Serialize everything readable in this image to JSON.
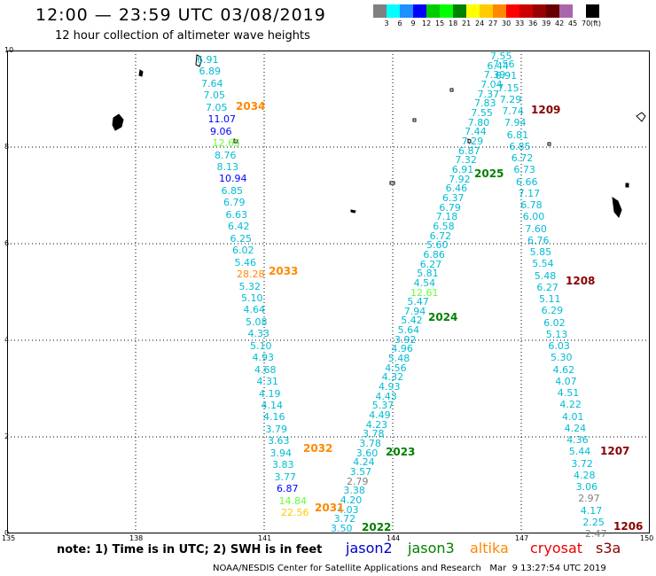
{
  "header": {
    "title": "12:00 — 23:59 UTC 03/08/2019",
    "subtitle": "12 hour collection of altimeter wave heights"
  },
  "colorbar": {
    "colors": [
      "#808080",
      "#00ffff",
      "#1e90ff",
      "#0000ff",
      "#00cc00",
      "#00ff00",
      "#008000",
      "#ffff00",
      "#ffcc00",
      "#ff8800",
      "#ff0000",
      "#cc0000",
      "#990000",
      "#660000",
      "#aa66aa",
      "#ffffff",
      "#000000"
    ],
    "labels": [
      "3",
      "6",
      "9",
      "12",
      "15",
      "18",
      "21",
      "24",
      "27",
      "30",
      "33",
      "36",
      "39",
      "42",
      "45",
      "70",
      "(ft)"
    ]
  },
  "map": {
    "lat_ticks": [
      "10",
      "8",
      "6",
      "4",
      "2",
      "0"
    ],
    "lon_ticks": [
      "135",
      "138",
      "141",
      "144",
      "147",
      "150"
    ],
    "lon_range": [
      135,
      150
    ],
    "lat_range": [
      0,
      10
    ],
    "grid_lons": [
      138,
      141,
      144,
      147
    ],
    "grid_lats": [
      8,
      6,
      4,
      2
    ]
  },
  "tracks": [
    {
      "name": "track-2034-2031",
      "color": "#00bcd4",
      "values": [
        "6.91",
        "6.89",
        "7.64",
        "7.05",
        "7.05",
        "11.07",
        "9.06",
        "12.65",
        "8.76",
        "8.13",
        "10.94",
        "6.85",
        "6.79",
        "6.63",
        "6.42",
        "6.25",
        "6.02",
        "5.46",
        "28.28",
        "5.32",
        "5.10",
        "4.64",
        "5.08",
        "4.33",
        "5.10",
        "4.93",
        "4.68",
        "4.31",
        "4.19",
        "4.14",
        "4.16",
        "3.79",
        "3.63",
        "3.94",
        "3.83",
        "3.77",
        "6.87",
        "14.84",
        "22.56"
      ],
      "colors": [
        "#00bcd4",
        "#00bcd4",
        "#00bcd4",
        "#00bcd4",
        "#00bcd4",
        "#0000ff",
        "#0000ff",
        "#66ff33",
        "#00bcd4",
        "#00bcd4",
        "#0000ff",
        "#00bcd4",
        "#00bcd4",
        "#00bcd4",
        "#00bcd4",
        "#00bcd4",
        "#00bcd4",
        "#00bcd4",
        "#ff8800",
        "#00bcd4",
        "#00bcd4",
        "#00bcd4",
        "#00bcd4",
        "#00bcd4",
        "#00bcd4",
        "#00bcd4",
        "#00bcd4",
        "#00bcd4",
        "#00bcd4",
        "#00bcd4",
        "#00bcd4",
        "#00bcd4",
        "#00bcd4",
        "#00bcd4",
        "#00bcd4",
        "#00bcd4",
        "#0000ff",
        "#66ff33",
        "#ffcc00"
      ]
    },
    {
      "name": "track-2022-2025",
      "color": "#00bcd4",
      "values": [
        "3.50",
        "3.72",
        "4.03",
        "4.20",
        "3.38",
        "2.79",
        "3.57",
        "4.24",
        "3.60",
        "3.78",
        "3.78",
        "4.23",
        "4.49",
        "5.37",
        "4.43",
        "4.93",
        "4.32",
        "4.56",
        "5.48",
        "4.96",
        "3.92",
        "5.64",
        "5.42",
        "7.94",
        "5.47",
        "12.61",
        "4.54",
        "5.81",
        "6.27",
        "6.86",
        "5.60",
        "6.72",
        "6.58",
        "7.18",
        "6.79",
        "6.37",
        "6.46",
        "7.92",
        "6.91",
        "7.32",
        "6.87",
        "7.29",
        "7.44",
        "7.80",
        "7.55",
        "7.83",
        "7.37",
        "7.04",
        "7.39",
        "6.44",
        "7.55"
      ],
      "colors": [
        "#00bcd4",
        "#00bcd4",
        "#00bcd4",
        "#00bcd4",
        "#00bcd4",
        "#808080",
        "#00bcd4",
        "#00bcd4",
        "#00bcd4",
        "#00bcd4",
        "#00bcd4",
        "#00bcd4",
        "#00bcd4",
        "#00bcd4",
        "#00bcd4",
        "#00bcd4",
        "#00bcd4",
        "#00bcd4",
        "#00bcd4",
        "#00bcd4",
        "#00bcd4",
        "#00bcd4",
        "#00bcd4",
        "#00bcd4",
        "#00bcd4",
        "#66ff33",
        "#00bcd4",
        "#00bcd4",
        "#00bcd4",
        "#00bcd4",
        "#00bcd4",
        "#00bcd4",
        "#00bcd4",
        "#00bcd4",
        "#00bcd4",
        "#00bcd4",
        "#00bcd4",
        "#00bcd4",
        "#00bcd4",
        "#00bcd4",
        "#00bcd4",
        "#00bcd4",
        "#00bcd4",
        "#00bcd4",
        "#00bcd4",
        "#00bcd4",
        "#00bcd4",
        "#00bcd4",
        "#00bcd4",
        "#00bcd4",
        "#00bcd4"
      ]
    },
    {
      "name": "track-1209-1206",
      "color": "#00bcd4",
      "values": [
        "7.56",
        "6.91",
        "7.15",
        "7.29",
        "7.74",
        "7.94",
        "6.81",
        "6.85",
        "6.72",
        "6.73",
        "6.66",
        "7.17",
        "6.78",
        "6.00",
        "7.60",
        "6.76",
        "5.85",
        "5.54",
        "5.48",
        "6.27",
        "5.11",
        "6.29",
        "6.02",
        "5.13",
        "6.03",
        "5.30",
        "4.62",
        "4.07",
        "4.51",
        "4.22",
        "4.01",
        "4.24",
        "4.36",
        "5.44",
        "3.72",
        "4.28",
        "3.06",
        "2.97",
        "4.17",
        "2.25",
        "2.47"
      ],
      "colors": [
        "#00bcd4",
        "#00bcd4",
        "#00bcd4",
        "#00bcd4",
        "#00bcd4",
        "#00bcd4",
        "#00bcd4",
        "#00bcd4",
        "#00bcd4",
        "#00bcd4",
        "#00bcd4",
        "#00bcd4",
        "#00bcd4",
        "#00bcd4",
        "#00bcd4",
        "#00bcd4",
        "#00bcd4",
        "#00bcd4",
        "#00bcd4",
        "#00bcd4",
        "#00bcd4",
        "#00bcd4",
        "#00bcd4",
        "#00bcd4",
        "#00bcd4",
        "#00bcd4",
        "#00bcd4",
        "#00bcd4",
        "#00bcd4",
        "#00bcd4",
        "#00bcd4",
        "#00bcd4",
        "#00bcd4",
        "#00bcd4",
        "#00bcd4",
        "#00bcd4",
        "#00bcd4",
        "#808080",
        "#00bcd4",
        "#00bcd4",
        "#808080"
      ]
    }
  ],
  "hour_labels": [
    {
      "text": "2034",
      "color": "#ff8800"
    },
    {
      "text": "2033",
      "color": "#ff8800"
    },
    {
      "text": "2032",
      "color": "#ff8800"
    },
    {
      "text": "2031",
      "color": "#ff8800"
    },
    {
      "text": "2025",
      "color": "#008000"
    },
    {
      "text": "2024",
      "color": "#008000"
    },
    {
      "text": "2023",
      "color": "#008000"
    },
    {
      "text": "2022",
      "color": "#008000"
    },
    {
      "text": "1209",
      "color": "#880000"
    },
    {
      "text": "1208",
      "color": "#880000"
    },
    {
      "text": "1207",
      "color": "#880000"
    },
    {
      "text": "1206",
      "color": "#880000"
    }
  ],
  "legend": {
    "note": "note: 1) Time is in UTC; 2) SWH is in feet",
    "satellites": [
      {
        "name": "jason2",
        "color": "#0000cc"
      },
      {
        "name": "jason3",
        "color": "#008000"
      },
      {
        "name": "altika",
        "color": "#ff8800"
      },
      {
        "name": "cryosat",
        "color": "#ee0000"
      },
      {
        "name": "s3a",
        "color": "#880000"
      }
    ]
  },
  "footer": "NOAA/NESDIS Center for Satellite Applications and Research   Mar  9 13:27:54 UTC 2019"
}
